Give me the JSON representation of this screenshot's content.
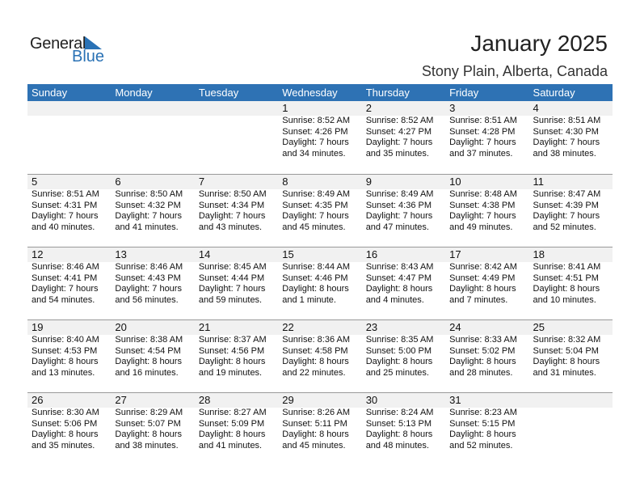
{
  "logo": {
    "text1": "General",
    "text2": "Blue"
  },
  "title": "January 2025",
  "location": "Stony Plain, Alberta, Canada",
  "weekdays": [
    "Sunday",
    "Monday",
    "Tuesday",
    "Wednesday",
    "Thursday",
    "Friday",
    "Saturday"
  ],
  "colors": {
    "header": "#2e72b4",
    "band": "#f1f1f1"
  },
  "days": [
    {
      "d": "1",
      "sr": "Sunrise: 8:52 AM",
      "ss": "Sunset: 4:26 PM",
      "dl1": "Daylight: 7 hours",
      "dl2": "and 34 minutes."
    },
    {
      "d": "2",
      "sr": "Sunrise: 8:52 AM",
      "ss": "Sunset: 4:27 PM",
      "dl1": "Daylight: 7 hours",
      "dl2": "and 35 minutes."
    },
    {
      "d": "3",
      "sr": "Sunrise: 8:51 AM",
      "ss": "Sunset: 4:28 PM",
      "dl1": "Daylight: 7 hours",
      "dl2": "and 37 minutes."
    },
    {
      "d": "4",
      "sr": "Sunrise: 8:51 AM",
      "ss": "Sunset: 4:30 PM",
      "dl1": "Daylight: 7 hours",
      "dl2": "and 38 minutes."
    },
    {
      "d": "5",
      "sr": "Sunrise: 8:51 AM",
      "ss": "Sunset: 4:31 PM",
      "dl1": "Daylight: 7 hours",
      "dl2": "and 40 minutes."
    },
    {
      "d": "6",
      "sr": "Sunrise: 8:50 AM",
      "ss": "Sunset: 4:32 PM",
      "dl1": "Daylight: 7 hours",
      "dl2": "and 41 minutes."
    },
    {
      "d": "7",
      "sr": "Sunrise: 8:50 AM",
      "ss": "Sunset: 4:34 PM",
      "dl1": "Daylight: 7 hours",
      "dl2": "and 43 minutes."
    },
    {
      "d": "8",
      "sr": "Sunrise: 8:49 AM",
      "ss": "Sunset: 4:35 PM",
      "dl1": "Daylight: 7 hours",
      "dl2": "and 45 minutes."
    },
    {
      "d": "9",
      "sr": "Sunrise: 8:49 AM",
      "ss": "Sunset: 4:36 PM",
      "dl1": "Daylight: 7 hours",
      "dl2": "and 47 minutes."
    },
    {
      "d": "10",
      "sr": "Sunrise: 8:48 AM",
      "ss": "Sunset: 4:38 PM",
      "dl1": "Daylight: 7 hours",
      "dl2": "and 49 minutes."
    },
    {
      "d": "11",
      "sr": "Sunrise: 8:47 AM",
      "ss": "Sunset: 4:39 PM",
      "dl1": "Daylight: 7 hours",
      "dl2": "and 52 minutes."
    },
    {
      "d": "12",
      "sr": "Sunrise: 8:46 AM",
      "ss": "Sunset: 4:41 PM",
      "dl1": "Daylight: 7 hours",
      "dl2": "and 54 minutes."
    },
    {
      "d": "13",
      "sr": "Sunrise: 8:46 AM",
      "ss": "Sunset: 4:43 PM",
      "dl1": "Daylight: 7 hours",
      "dl2": "and 56 minutes."
    },
    {
      "d": "14",
      "sr": "Sunrise: 8:45 AM",
      "ss": "Sunset: 4:44 PM",
      "dl1": "Daylight: 7 hours",
      "dl2": "and 59 minutes."
    },
    {
      "d": "15",
      "sr": "Sunrise: 8:44 AM",
      "ss": "Sunset: 4:46 PM",
      "dl1": "Daylight: 8 hours",
      "dl2": "and 1 minute."
    },
    {
      "d": "16",
      "sr": "Sunrise: 8:43 AM",
      "ss": "Sunset: 4:47 PM",
      "dl1": "Daylight: 8 hours",
      "dl2": "and 4 minutes."
    },
    {
      "d": "17",
      "sr": "Sunrise: 8:42 AM",
      "ss": "Sunset: 4:49 PM",
      "dl1": "Daylight: 8 hours",
      "dl2": "and 7 minutes."
    },
    {
      "d": "18",
      "sr": "Sunrise: 8:41 AM",
      "ss": "Sunset: 4:51 PM",
      "dl1": "Daylight: 8 hours",
      "dl2": "and 10 minutes."
    },
    {
      "d": "19",
      "sr": "Sunrise: 8:40 AM",
      "ss": "Sunset: 4:53 PM",
      "dl1": "Daylight: 8 hours",
      "dl2": "and 13 minutes."
    },
    {
      "d": "20",
      "sr": "Sunrise: 8:38 AM",
      "ss": "Sunset: 4:54 PM",
      "dl1": "Daylight: 8 hours",
      "dl2": "and 16 minutes."
    },
    {
      "d": "21",
      "sr": "Sunrise: 8:37 AM",
      "ss": "Sunset: 4:56 PM",
      "dl1": "Daylight: 8 hours",
      "dl2": "and 19 minutes."
    },
    {
      "d": "22",
      "sr": "Sunrise: 8:36 AM",
      "ss": "Sunset: 4:58 PM",
      "dl1": "Daylight: 8 hours",
      "dl2": "and 22 minutes."
    },
    {
      "d": "23",
      "sr": "Sunrise: 8:35 AM",
      "ss": "Sunset: 5:00 PM",
      "dl1": "Daylight: 8 hours",
      "dl2": "and 25 minutes."
    },
    {
      "d": "24",
      "sr": "Sunrise: 8:33 AM",
      "ss": "Sunset: 5:02 PM",
      "dl1": "Daylight: 8 hours",
      "dl2": "and 28 minutes."
    },
    {
      "d": "25",
      "sr": "Sunrise: 8:32 AM",
      "ss": "Sunset: 5:04 PM",
      "dl1": "Daylight: 8 hours",
      "dl2": "and 31 minutes."
    },
    {
      "d": "26",
      "sr": "Sunrise: 8:30 AM",
      "ss": "Sunset: 5:06 PM",
      "dl1": "Daylight: 8 hours",
      "dl2": "and 35 minutes."
    },
    {
      "d": "27",
      "sr": "Sunrise: 8:29 AM",
      "ss": "Sunset: 5:07 PM",
      "dl1": "Daylight: 8 hours",
      "dl2": "and 38 minutes."
    },
    {
      "d": "28",
      "sr": "Sunrise: 8:27 AM",
      "ss": "Sunset: 5:09 PM",
      "dl1": "Daylight: 8 hours",
      "dl2": "and 41 minutes."
    },
    {
      "d": "29",
      "sr": "Sunrise: 8:26 AM",
      "ss": "Sunset: 5:11 PM",
      "dl1": "Daylight: 8 hours",
      "dl2": "and 45 minutes."
    },
    {
      "d": "30",
      "sr": "Sunrise: 8:24 AM",
      "ss": "Sunset: 5:13 PM",
      "dl1": "Daylight: 8 hours",
      "dl2": "and 48 minutes."
    },
    {
      "d": "31",
      "sr": "Sunrise: 8:23 AM",
      "ss": "Sunset: 5:15 PM",
      "dl1": "Daylight: 8 hours",
      "dl2": "and 52 minutes."
    }
  ]
}
